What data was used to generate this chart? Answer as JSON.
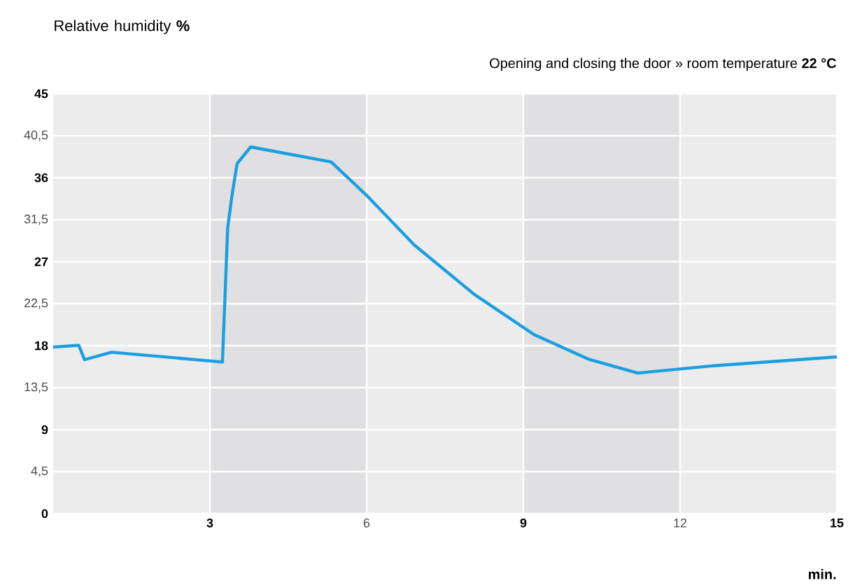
{
  "chart_data": {
    "type": "line",
    "subtitle": "Opening and closing the door » room temperature **22 °C**",
    "xlabel": "min.",
    "ylabel": "Relative humidity **%**",
    "x": [
      0,
      0.49,
      0.6,
      1.12,
      3.24,
      3.34,
      3.42,
      3.52,
      3.78,
      5.32,
      6.02,
      6.91,
      8.06,
      9.2,
      10.25,
      11.19,
      12.54,
      15
    ],
    "series": [
      {
        "color": "#1a9fe0",
        "values": [
          17.85,
          18.05,
          16.5,
          17.3,
          16.25,
          30.6,
          34,
          37.5,
          39.3,
          37.7,
          34,
          28.8,
          23.5,
          19.2,
          16.55,
          15.07,
          15.8,
          16.8
        ]
      }
    ],
    "xlim": [
      0,
      15
    ],
    "xticks": [
      3,
      6,
      9,
      12,
      15
    ],
    "ylim": [
      0,
      45
    ],
    "yticks": [
      0,
      {
        "value": 4.5,
        "label": "4,5"
      },
      9,
      {
        "value": 13.5,
        "label": "13,5"
      },
      18,
      {
        "value": 22.5,
        "label": "22,5"
      },
      27,
      {
        "value": 31.5,
        "label": "31,5"
      },
      36,
      {
        "value": 40.5,
        "label": "40,5"
      },
      45
    ],
    "bands": [
      {
        "axis": "x",
        "from": 3,
        "to": 6,
        "color": "#e0e0e2"
      },
      {
        "axis": "x",
        "from": 9,
        "to": 12,
        "color": "#e0e0e2"
      }
    ],
    "grid": true
  }
}
